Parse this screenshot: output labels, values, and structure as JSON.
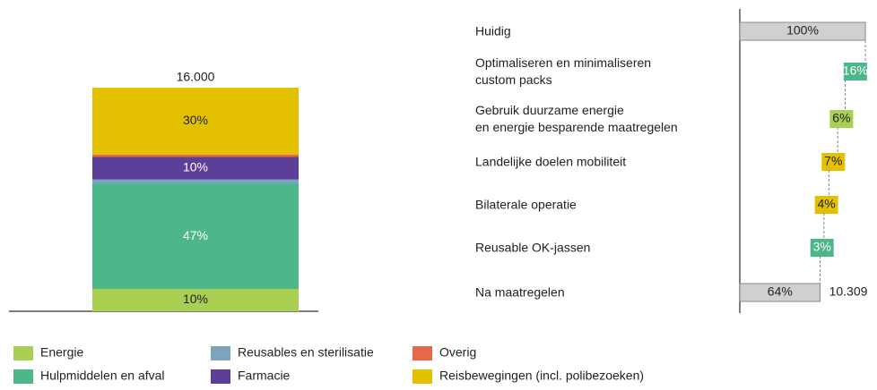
{
  "chart_data": [
    {
      "type": "stacked_bar",
      "annotation": "16.000",
      "ylim": [
        0,
        100
      ],
      "series": [
        {
          "name": "Energie",
          "color": "#a9d052",
          "values": [
            10
          ],
          "value_labels": [
            "10%"
          ]
        },
        {
          "name": "Hulpmiddelen en afval",
          "color": "#4cb88a",
          "values": [
            47
          ],
          "value_labels": [
            "47%"
          ]
        },
        {
          "name": "Reusables en sterilisatie",
          "color": "#7aa5bd",
          "values": [
            2
          ]
        },
        {
          "name": "Farmacie",
          "color": "#5c3f98",
          "values": [
            10
          ],
          "value_labels": [
            "10%"
          ]
        },
        {
          "name": "Overig",
          "color": "#e8674a",
          "values": [
            1
          ]
        },
        {
          "name": "Reisbewegingen (incl. polibezoeken)",
          "color": "#e3c000",
          "values": [
            30
          ],
          "value_labels": [
            "30%"
          ]
        }
      ]
    },
    {
      "type": "waterfall",
      "annotation": "10.309",
      "xlim": [
        0,
        100
      ],
      "categories": [
        "Huidig",
        "Optimaliseren en minimaliseren\ncustom packs",
        "Gebruik duurzame energie\nen energie besparende maatregelen",
        "Landelijke doelen mobiliteit",
        "Bilaterale operatie",
        "Reusable OK-jassen",
        "Na maatregelen"
      ],
      "measure": [
        "absolute",
        "decrease",
        "decrease",
        "decrease",
        "decrease",
        "decrease",
        "absolute"
      ],
      "values": [
        100,
        16,
        6,
        7,
        4,
        3,
        64
      ],
      "value_labels": [
        "100%",
        "16%",
        "6%",
        "7%",
        "4%",
        "3%",
        "64%"
      ],
      "colors": [
        "#d0d0d0",
        "#4cb88a",
        "#a9d052",
        "#e3c000",
        "#e3c000",
        "#4cb88a",
        "#d0d0d0"
      ]
    }
  ]
}
